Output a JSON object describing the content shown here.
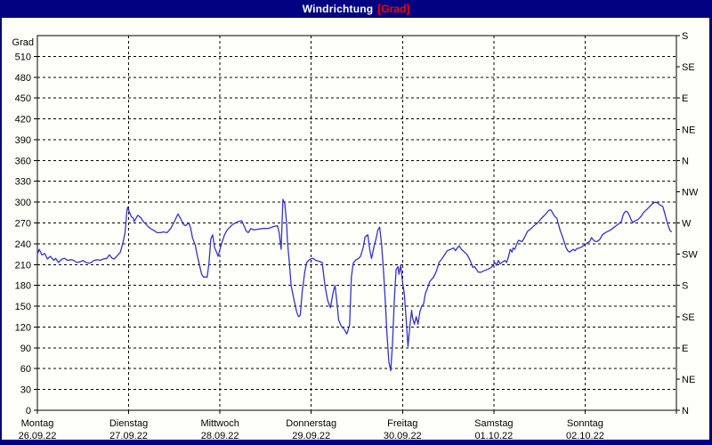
{
  "window": {
    "title_main": "Windrichtung",
    "title_unit": "[Grad]"
  },
  "colors": {
    "titlebar_bg": "#000080",
    "frame": "#000080",
    "title_text": "#ffffff",
    "title_unit_text": "#ff0000",
    "plot_bg": "#ffffff",
    "grid": "#000000",
    "line": "#3232cc"
  },
  "chart_data": {
    "type": "line",
    "title": "Windrichtung [Grad]",
    "grid": "dashed",
    "legend": "none",
    "y_axis_left": {
      "title": "Grad",
      "lim": [
        0,
        540
      ],
      "tick_step": 30,
      "tick_labels": [
        0,
        30,
        60,
        90,
        120,
        150,
        180,
        210,
        240,
        270,
        300,
        330,
        360,
        390,
        420,
        450,
        480,
        510
      ]
    },
    "y_axis_right": {
      "tick_step": 45,
      "labels": [
        {
          "deg": 0,
          "label": "N"
        },
        {
          "deg": 45,
          "label": "NE"
        },
        {
          "deg": 90,
          "label": "E"
        },
        {
          "deg": 135,
          "label": "SE"
        },
        {
          "deg": 180,
          "label": "S"
        },
        {
          "deg": 225,
          "label": "SW"
        },
        {
          "deg": 270,
          "label": "W"
        },
        {
          "deg": 315,
          "label": "NW"
        },
        {
          "deg": 360,
          "label": "N"
        },
        {
          "deg": 405,
          "label": "NE"
        },
        {
          "deg": 450,
          "label": "E"
        },
        {
          "deg": 495,
          "label": "SE"
        },
        {
          "deg": 540,
          "label": "S"
        }
      ]
    },
    "x_axis": {
      "lim_days": [
        0,
        7
      ],
      "days": [
        {
          "weekday": "Montag",
          "date": "26.09.22"
        },
        {
          "weekday": "Dienstag",
          "date": "27.09.22"
        },
        {
          "weekday": "Mittwoch",
          "date": "28.09.22"
        },
        {
          "weekday": "Donnerstag",
          "date": "29.09.22"
        },
        {
          "weekday": "Freitag",
          "date": "30.09.22"
        },
        {
          "weekday": "Samstag",
          "date": "01.10.22"
        },
        {
          "weekday": "Sonntag",
          "date": "02.10.22"
        }
      ]
    },
    "series": [
      {
        "name": "Windrichtung",
        "color": "#3232cc",
        "points": [
          [
            0.0,
            225
          ],
          [
            0.02,
            232
          ],
          [
            0.05,
            224
          ],
          [
            0.08,
            226
          ],
          [
            0.11,
            218
          ],
          [
            0.14,
            222
          ],
          [
            0.18,
            216
          ],
          [
            0.2,
            219
          ],
          [
            0.23,
            213
          ],
          [
            0.27,
            218
          ],
          [
            0.3,
            219
          ],
          [
            0.33,
            216
          ],
          [
            0.37,
            217
          ],
          [
            0.4,
            216
          ],
          [
            0.43,
            213
          ],
          [
            0.47,
            214
          ],
          [
            0.5,
            216
          ],
          [
            0.53,
            213
          ],
          [
            0.57,
            212
          ],
          [
            0.59,
            213
          ],
          [
            0.62,
            216
          ],
          [
            0.66,
            217
          ],
          [
            0.69,
            216
          ],
          [
            0.72,
            218
          ],
          [
            0.76,
            219
          ],
          [
            0.79,
            224
          ],
          [
            0.82,
            219
          ],
          [
            0.84,
            218
          ],
          [
            0.87,
            222
          ],
          [
            0.91,
            228
          ],
          [
            0.94,
            243
          ],
          [
            0.96,
            256
          ],
          [
            0.97,
            270
          ],
          [
            0.98,
            287
          ],
          [
            0.99,
            293
          ],
          [
            1.01,
            285
          ],
          [
            1.03,
            279
          ],
          [
            1.05,
            277
          ],
          [
            1.06,
            272
          ],
          [
            1.1,
            281
          ],
          [
            1.13,
            278
          ],
          [
            1.16,
            272
          ],
          [
            1.19,
            268
          ],
          [
            1.22,
            264
          ],
          [
            1.25,
            261
          ],
          [
            1.28,
            259
          ],
          [
            1.31,
            256
          ],
          [
            1.35,
            256
          ],
          [
            1.38,
            257
          ],
          [
            1.42,
            256
          ],
          [
            1.46,
            262
          ],
          [
            1.5,
            272
          ],
          [
            1.54,
            283
          ],
          [
            1.57,
            276
          ],
          [
            1.6,
            268
          ],
          [
            1.62,
            266
          ],
          [
            1.64,
            268
          ],
          [
            1.66,
            270
          ],
          [
            1.68,
            262
          ],
          [
            1.7,
            248
          ],
          [
            1.73,
            238
          ],
          [
            1.75,
            224
          ],
          [
            1.78,
            207
          ],
          [
            1.8,
            196
          ],
          [
            1.82,
            192
          ],
          [
            1.86,
            192
          ],
          [
            1.88,
            212
          ],
          [
            1.9,
            247
          ],
          [
            1.92,
            253
          ],
          [
            1.94,
            235
          ],
          [
            1.96,
            229
          ],
          [
            1.98,
            222
          ],
          [
            2.0,
            232
          ],
          [
            2.02,
            241
          ],
          [
            2.05,
            253
          ],
          [
            2.08,
            260
          ],
          [
            2.11,
            264
          ],
          [
            2.14,
            268
          ],
          [
            2.17,
            270
          ],
          [
            2.2,
            272
          ],
          [
            2.24,
            273
          ],
          [
            2.27,
            264
          ],
          [
            2.29,
            258
          ],
          [
            2.31,
            256
          ],
          [
            2.34,
            262
          ],
          [
            2.37,
            260
          ],
          [
            2.42,
            261
          ],
          [
            2.47,
            262
          ],
          [
            2.52,
            262
          ],
          [
            2.55,
            263
          ],
          [
            2.59,
            265
          ],
          [
            2.63,
            266
          ],
          [
            2.65,
            255
          ],
          [
            2.66,
            243
          ],
          [
            2.67,
            232
          ],
          [
            2.69,
            304
          ],
          [
            2.71,
            298
          ],
          [
            2.73,
            270
          ],
          [
            2.74,
            243
          ],
          [
            2.76,
            213
          ],
          [
            2.78,
            180
          ],
          [
            2.81,
            160
          ],
          [
            2.84,
            142
          ],
          [
            2.86,
            135
          ],
          [
            2.88,
            137
          ],
          [
            2.9,
            170
          ],
          [
            2.93,
            200
          ],
          [
            2.95,
            213
          ],
          [
            2.99,
            218
          ],
          [
            3.02,
            219
          ],
          [
            3.05,
            216
          ],
          [
            3.08,
            215
          ],
          [
            3.12,
            213
          ],
          [
            3.15,
            180
          ],
          [
            3.18,
            158
          ],
          [
            3.21,
            148
          ],
          [
            3.24,
            170
          ],
          [
            3.26,
            180
          ],
          [
            3.28,
            158
          ],
          [
            3.3,
            130
          ],
          [
            3.33,
            121
          ],
          [
            3.36,
            117
          ],
          [
            3.39,
            110
          ],
          [
            3.42,
            123
          ],
          [
            3.44,
            192
          ],
          [
            3.46,
            212
          ],
          [
            3.49,
            217
          ],
          [
            3.52,
            219
          ],
          [
            3.54,
            222
          ],
          [
            3.57,
            235
          ],
          [
            3.59,
            250
          ],
          [
            3.62,
            253
          ],
          [
            3.64,
            232
          ],
          [
            3.66,
            219
          ],
          [
            3.67,
            224
          ],
          [
            3.69,
            238
          ],
          [
            3.71,
            247
          ],
          [
            3.73,
            260
          ],
          [
            3.75,
            264
          ],
          [
            3.77,
            240
          ],
          [
            3.79,
            205
          ],
          [
            3.81,
            160
          ],
          [
            3.83,
            110
          ],
          [
            3.85,
            70
          ],
          [
            3.87,
            57
          ],
          [
            3.89,
            95
          ],
          [
            3.91,
            160
          ],
          [
            3.93,
            203
          ],
          [
            3.95,
            207
          ],
          [
            3.96,
            196
          ],
          [
            3.98,
            209
          ],
          [
            4.0,
            185
          ],
          [
            4.02,
            168
          ],
          [
            4.04,
            130
          ],
          [
            4.06,
            92
          ],
          [
            4.08,
            121
          ],
          [
            4.1,
            144
          ],
          [
            4.11,
            133
          ],
          [
            4.13,
            124
          ],
          [
            4.15,
            135
          ],
          [
            4.17,
            124
          ],
          [
            4.19,
            142
          ],
          [
            4.21,
            150
          ],
          [
            4.23,
            153
          ],
          [
            4.25,
            168
          ],
          [
            4.27,
            175
          ],
          [
            4.3,
            186
          ],
          [
            4.34,
            192
          ],
          [
            4.37,
            200
          ],
          [
            4.4,
            213
          ],
          [
            4.43,
            218
          ],
          [
            4.46,
            224
          ],
          [
            4.49,
            230
          ],
          [
            4.53,
            232
          ],
          [
            4.56,
            234
          ],
          [
            4.58,
            230
          ],
          [
            4.6,
            234
          ],
          [
            4.62,
            237
          ],
          [
            4.65,
            231
          ],
          [
            4.68,
            228
          ],
          [
            4.71,
            224
          ],
          [
            4.74,
            216
          ],
          [
            4.77,
            206
          ],
          [
            4.79,
            207
          ],
          [
            4.81,
            203
          ],
          [
            4.83,
            199
          ],
          [
            4.86,
            199
          ],
          [
            4.89,
            201
          ],
          [
            4.93,
            203
          ],
          [
            4.96,
            205
          ],
          [
            4.98,
            207
          ],
          [
            5.01,
            213
          ],
          [
            5.03,
            209
          ],
          [
            5.05,
            216
          ],
          [
            5.07,
            211
          ],
          [
            5.09,
            213
          ],
          [
            5.12,
            216
          ],
          [
            5.14,
            213
          ],
          [
            5.16,
            221
          ],
          [
            5.18,
            232
          ],
          [
            5.2,
            228
          ],
          [
            5.21,
            234
          ],
          [
            5.23,
            232
          ],
          [
            5.25,
            239
          ],
          [
            5.27,
            245
          ],
          [
            5.31,
            243
          ],
          [
            5.34,
            250
          ],
          [
            5.37,
            258
          ],
          [
            5.41,
            262
          ],
          [
            5.44,
            266
          ],
          [
            5.48,
            270
          ],
          [
            5.51,
            275
          ],
          [
            5.54,
            279
          ],
          [
            5.57,
            283
          ],
          [
            5.6,
            288
          ],
          [
            5.62,
            289
          ],
          [
            5.63,
            288
          ],
          [
            5.65,
            283
          ],
          [
            5.67,
            279
          ],
          [
            5.69,
            277
          ],
          [
            5.71,
            267
          ],
          [
            5.73,
            258
          ],
          [
            5.75,
            251
          ],
          [
            5.77,
            243
          ],
          [
            5.79,
            235
          ],
          [
            5.81,
            230
          ],
          [
            5.83,
            228
          ],
          [
            5.85,
            230
          ],
          [
            5.87,
            232
          ],
          [
            5.89,
            230
          ],
          [
            5.91,
            233
          ],
          [
            5.94,
            234
          ],
          [
            5.97,
            236
          ],
          [
            6.0,
            239
          ],
          [
            6.02,
            241
          ],
          [
            6.05,
            243
          ],
          [
            6.07,
            249
          ],
          [
            6.1,
            244
          ],
          [
            6.13,
            243
          ],
          [
            6.16,
            246
          ],
          [
            6.19,
            253
          ],
          [
            6.22,
            256
          ],
          [
            6.25,
            258
          ],
          [
            6.28,
            260
          ],
          [
            6.32,
            264
          ],
          [
            6.35,
            267
          ],
          [
            6.38,
            270
          ],
          [
            6.4,
            273
          ],
          [
            6.41,
            279
          ],
          [
            6.43,
            285
          ],
          [
            6.45,
            287
          ],
          [
            6.47,
            285
          ],
          [
            6.49,
            279
          ],
          [
            6.51,
            273
          ],
          [
            6.53,
            271
          ],
          [
            6.55,
            273
          ],
          [
            6.58,
            275
          ],
          [
            6.61,
            279
          ],
          [
            6.64,
            285
          ],
          [
            6.68,
            290
          ],
          [
            6.71,
            294
          ],
          [
            6.74,
            298
          ],
          [
            6.77,
            300
          ],
          [
            6.79,
            299
          ],
          [
            6.81,
            297
          ],
          [
            6.83,
            295
          ],
          [
            6.85,
            294
          ],
          [
            6.87,
            285
          ],
          [
            6.89,
            275
          ],
          [
            6.91,
            266
          ],
          [
            6.93,
            259
          ],
          [
            6.95,
            257
          ]
        ]
      }
    ]
  }
}
